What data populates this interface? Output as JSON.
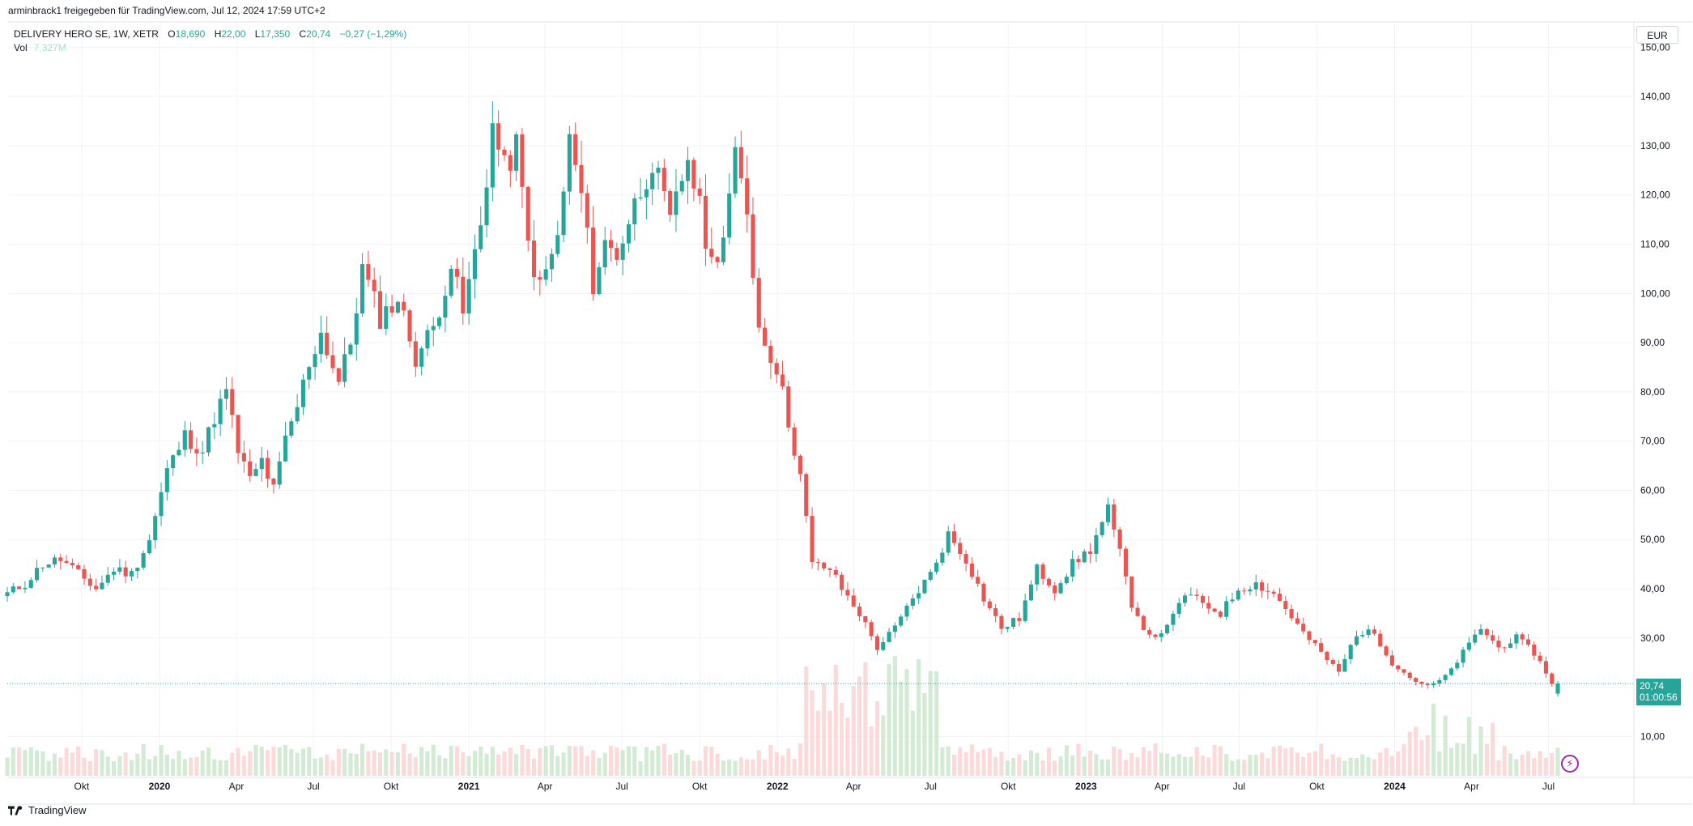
{
  "header": {
    "attribution": "arminbrack1 freigegeben für TradingView.com, Jul 12, 2024 17:59 UTC+2"
  },
  "legend": {
    "symbol": "DELIVERY HERO SE, 1W, XETR",
    "open_label": "O",
    "open": "18,690",
    "high_label": "H",
    "high": "22,00",
    "low_label": "L",
    "low": "17,350",
    "close_label": "C",
    "close": "20,74",
    "change": "−0,27 (−1,29%)",
    "vol_label": "Vol",
    "vol": "7,327M"
  },
  "currency": "EUR",
  "last_price": {
    "price": "20,74",
    "countdown": "01:00:56"
  },
  "brand": {
    "name": "TradingView",
    "icon": "tradingview-logo-icon"
  },
  "colors": {
    "up": "#26a69a",
    "down": "#ef5350",
    "vol_up": "#c8e6c9",
    "vol_down": "#fbd1d1",
    "grid": "#f0f3fa"
  },
  "chart_data": {
    "type": "candlestick",
    "interval": "1W",
    "price_axis": {
      "ticks": [
        "10,00",
        "20,00",
        "30,00",
        "40,00",
        "50,00",
        "60,00",
        "70,00",
        "80,00",
        "90,00",
        "100,00",
        "110,00",
        "120,00",
        "130,00",
        "140,00",
        "150,00"
      ],
      "range": [
        2,
        155
      ]
    },
    "time_axis": {
      "ticks": [
        "Okt",
        "2020",
        "Apr",
        "Jul",
        "Okt",
        "2021",
        "Apr",
        "Jul",
        "Okt",
        "2022",
        "Apr",
        "Jul",
        "Okt",
        "2023",
        "Apr",
        "Jul",
        "Okt",
        "2024",
        "Apr",
        "Jul"
      ],
      "range": [
        "2019-07-05",
        "2024-10-10"
      ]
    },
    "last_price_line": 20.74,
    "close_anchors": [
      [
        "2019-07-05",
        39
      ],
      [
        "2019-07-26",
        41
      ],
      [
        "2019-08-16",
        45
      ],
      [
        "2019-09-06",
        46
      ],
      [
        "2019-09-27",
        43
      ],
      [
        "2019-10-18",
        40
      ],
      [
        "2019-11-08",
        44
      ],
      [
        "2019-11-29",
        43
      ],
      [
        "2019-12-20",
        50
      ],
      [
        "2020-01-10",
        64
      ],
      [
        "2020-01-31",
        71
      ],
      [
        "2020-02-21",
        68
      ],
      [
        "2020-03-06",
        75
      ],
      [
        "2020-03-20",
        80
      ],
      [
        "2020-04-03",
        68
      ],
      [
        "2020-04-17",
        62
      ],
      [
        "2020-05-01",
        66
      ],
      [
        "2020-05-15",
        60
      ],
      [
        "2020-05-29",
        70
      ],
      [
        "2020-06-12",
        77
      ],
      [
        "2020-06-26",
        86
      ],
      [
        "2020-07-10",
        92
      ],
      [
        "2020-07-31",
        82
      ],
      [
        "2020-08-14",
        90
      ],
      [
        "2020-08-28",
        105
      ],
      [
        "2020-09-18",
        95
      ],
      [
        "2020-10-09",
        99
      ],
      [
        "2020-10-30",
        87
      ],
      [
        "2020-11-20",
        93
      ],
      [
        "2020-12-11",
        106
      ],
      [
        "2020-12-25",
        96
      ],
      [
        "2021-01-15",
        114
      ],
      [
        "2021-01-29",
        134
      ],
      [
        "2021-02-12",
        125
      ],
      [
        "2021-02-26",
        130
      ],
      [
        "2021-03-12",
        110
      ],
      [
        "2021-03-26",
        101
      ],
      [
        "2021-04-16",
        111
      ],
      [
        "2021-04-30",
        131
      ],
      [
        "2021-05-14",
        120
      ],
      [
        "2021-05-28",
        102
      ],
      [
        "2021-06-11",
        110
      ],
      [
        "2021-06-25",
        108
      ],
      [
        "2021-07-16",
        118
      ],
      [
        "2021-08-06",
        127
      ],
      [
        "2021-08-27",
        114
      ],
      [
        "2021-09-17",
        128
      ],
      [
        "2021-10-01",
        117
      ],
      [
        "2021-10-15",
        106
      ],
      [
        "2021-10-29",
        112
      ],
      [
        "2021-11-12",
        127
      ],
      [
        "2021-11-26",
        117
      ],
      [
        "2021-12-10",
        93
      ],
      [
        "2021-12-31",
        85
      ],
      [
        "2022-01-14",
        74
      ],
      [
        "2022-01-28",
        63
      ],
      [
        "2022-02-11",
        45
      ],
      [
        "2022-03-04",
        44
      ],
      [
        "2022-03-18",
        40
      ],
      [
        "2022-04-08",
        35
      ],
      [
        "2022-04-29",
        28
      ],
      [
        "2022-05-20",
        32
      ],
      [
        "2022-06-10",
        38
      ],
      [
        "2022-07-01",
        43
      ],
      [
        "2022-07-22",
        51
      ],
      [
        "2022-08-12",
        46
      ],
      [
        "2022-09-02",
        38
      ],
      [
        "2022-09-23",
        32
      ],
      [
        "2022-10-14",
        34
      ],
      [
        "2022-11-04",
        44
      ],
      [
        "2022-11-25",
        40
      ],
      [
        "2022-12-16",
        45
      ],
      [
        "2023-01-06",
        48
      ],
      [
        "2023-01-27",
        56
      ],
      [
        "2023-02-10",
        47
      ],
      [
        "2023-02-24",
        37
      ],
      [
        "2023-03-17",
        30
      ],
      [
        "2023-04-07",
        32
      ],
      [
        "2023-04-28",
        39
      ],
      [
        "2023-05-19",
        37
      ],
      [
        "2023-06-09",
        35
      ],
      [
        "2023-06-30",
        40
      ],
      [
        "2023-07-21",
        41
      ],
      [
        "2023-08-11",
        39
      ],
      [
        "2023-08-25",
        36
      ],
      [
        "2023-09-15",
        31
      ],
      [
        "2023-10-06",
        27
      ],
      [
        "2023-10-27",
        23
      ],
      [
        "2023-11-17",
        31
      ],
      [
        "2023-12-08",
        31
      ],
      [
        "2023-12-29",
        25
      ],
      [
        "2024-01-19",
        22
      ],
      [
        "2024-02-09",
        20
      ],
      [
        "2024-03-01",
        22
      ],
      [
        "2024-03-22",
        27
      ],
      [
        "2024-04-12",
        32
      ],
      [
        "2024-05-03",
        28
      ],
      [
        "2024-05-24",
        30
      ],
      [
        "2024-06-14",
        27
      ],
      [
        "2024-06-28",
        23
      ],
      [
        "2024-07-05",
        21
      ],
      [
        "2024-07-12",
        20.74
      ]
    ]
  }
}
